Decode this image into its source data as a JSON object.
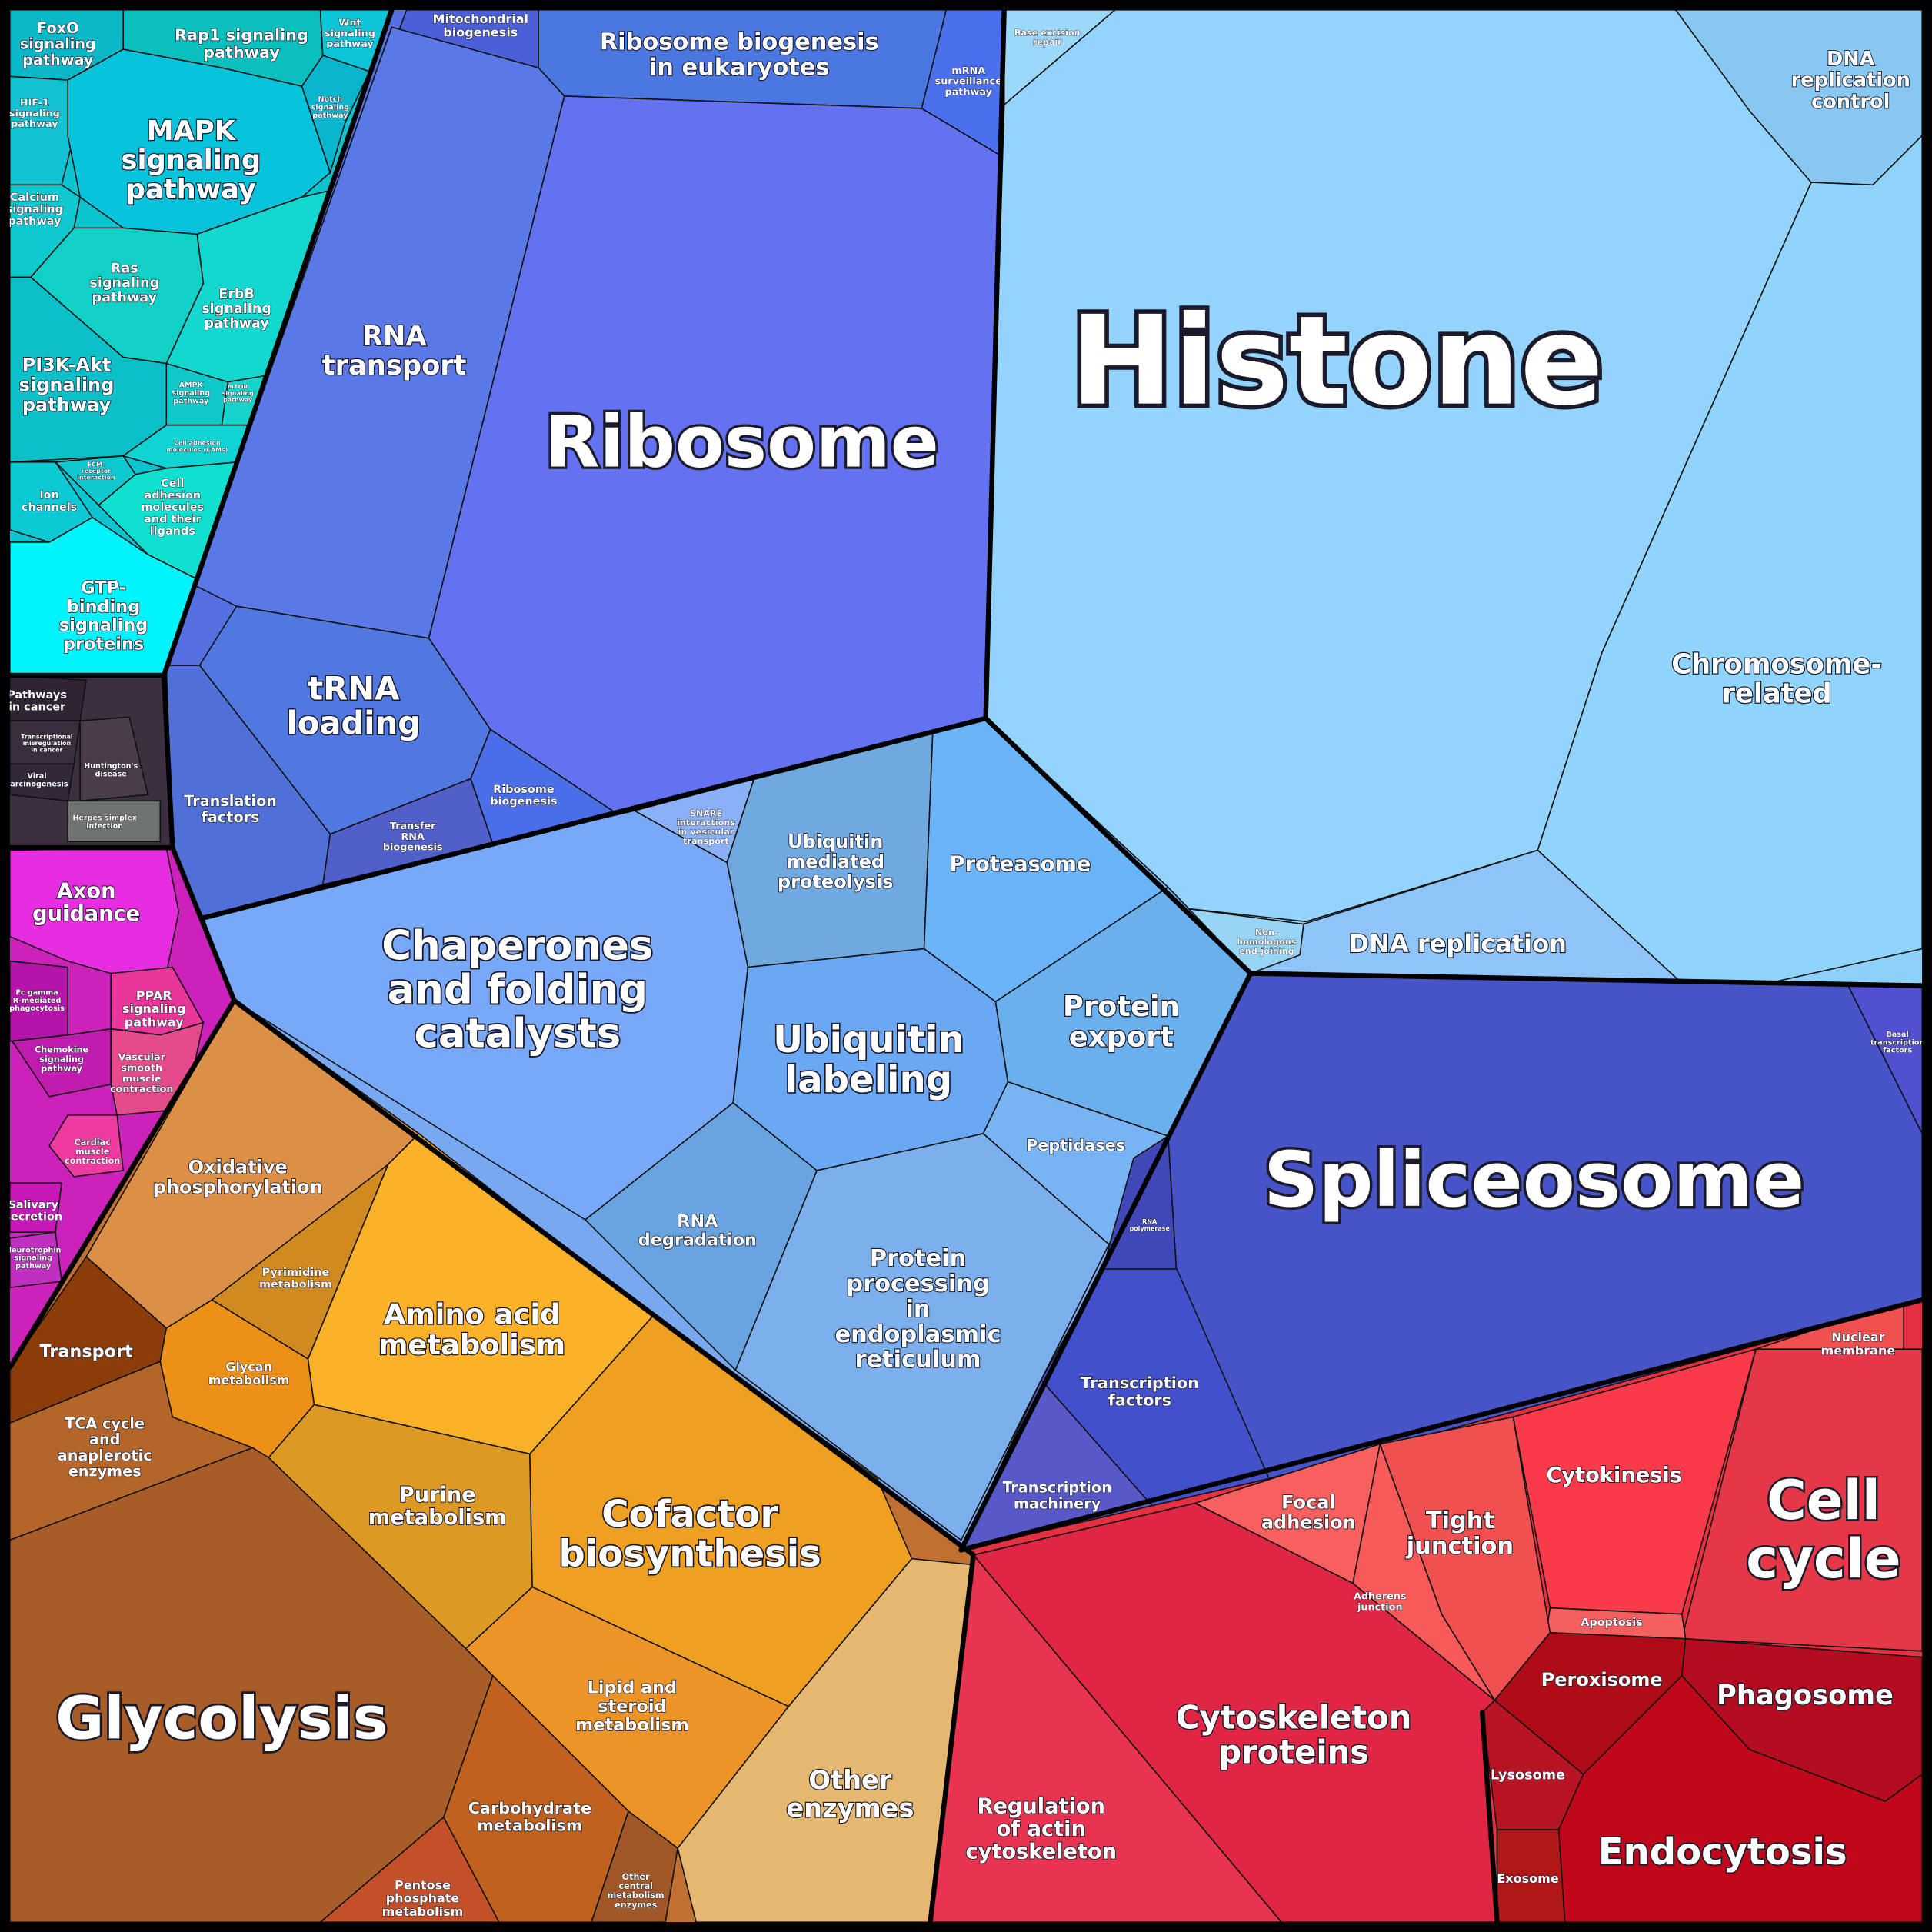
{
  "cells": [
    {
      "lines": [
        "FoxO",
        "signaling",
        "pathway"
      ]
    },
    {
      "lines": [
        "Rap1 signaling",
        "pathway"
      ]
    },
    {
      "lines": [
        "Wnt",
        "signaling",
        "pathway"
      ]
    },
    {
      "lines": [
        "HIF-1",
        "signaling",
        "pathway"
      ]
    },
    {
      "lines": [
        "MAPK",
        "signaling",
        "pathway"
      ]
    },
    {
      "lines": [
        "Notch",
        "signaling",
        "pathway"
      ]
    },
    {
      "lines": [
        "Calcium",
        "signaling",
        "pathway"
      ]
    },
    {
      "lines": [
        "Ras",
        "signaling",
        "pathway"
      ]
    },
    {
      "lines": [
        "ErbB",
        "signaling",
        "pathway"
      ]
    },
    {
      "lines": [
        "PI3K-Akt",
        "signaling",
        "pathway"
      ]
    },
    {
      "lines": [
        "AMPK",
        "signaling",
        "pathway"
      ]
    },
    {
      "lines": [
        "mTOR",
        "signaling",
        "pathway"
      ]
    },
    {
      "lines": [
        "Cell adhesion",
        "molecules (CAMs)"
      ]
    },
    {
      "lines": [
        "ECM-",
        "receptor",
        "interaction"
      ]
    },
    {
      "lines": [
        "Ion",
        "channels"
      ]
    },
    {
      "lines": [
        "Cell",
        "adhesion",
        "molecules",
        "and their",
        "ligands"
      ]
    },
    {
      "lines": [
        "GTP-",
        "binding",
        "signaling",
        "proteins"
      ]
    },
    {
      "lines": [
        "Pathways",
        "in cancer"
      ]
    },
    {
      "lines": [
        "Transcriptional",
        "misregulation",
        "in cancer"
      ]
    },
    {
      "lines": [
        "Viral",
        "carcinogenesis"
      ]
    },
    {
      "lines": [
        "Huntington's",
        "disease"
      ]
    },
    {
      "lines": [
        "Herpes simplex",
        "infection"
      ]
    },
    {
      "lines": [
        "Axon",
        "guidance"
      ]
    },
    {
      "lines": [
        "Fc gamma",
        "R-mediated",
        "phagocytosis"
      ]
    },
    {
      "lines": [
        "PPAR",
        "signaling",
        "pathway"
      ]
    },
    {
      "lines": [
        "Chemokine",
        "signaling",
        "pathway"
      ]
    },
    {
      "lines": [
        "Vascular",
        "smooth",
        "muscle",
        "contraction"
      ]
    },
    {
      "lines": [
        "Cardiac",
        "muscle",
        "contraction"
      ]
    },
    {
      "lines": [
        "Salivary",
        "secretion"
      ]
    },
    {
      "lines": [
        "Neurotrophin",
        "signaling",
        "pathway"
      ]
    },
    {
      "lines": [
        "Mitochondrial",
        "biogenesis"
      ]
    },
    {
      "lines": [
        "Ribosome biogenesis",
        "in eukaryotes"
      ]
    },
    {
      "lines": [
        "mRNA",
        "surveillance",
        "pathway"
      ]
    },
    {
      "lines": [
        "RNA",
        "transport"
      ]
    },
    {
      "lines": [
        "Ribosome"
      ]
    },
    {
      "lines": [
        "tRNA",
        "loading"
      ]
    },
    {
      "lines": [
        "Ribosome",
        "biogenesis"
      ]
    },
    {
      "lines": [
        "Transfer",
        "RNA",
        "biogenesis"
      ]
    },
    {
      "lines": [
        "Translation",
        "factors"
      ]
    },
    {
      "lines": [
        "Base excision",
        "repair"
      ]
    },
    {
      "lines": [
        "Histone"
      ]
    },
    {
      "lines": [
        "DNA",
        "replication",
        "control"
      ]
    },
    {
      "lines": [
        "Chromosome-",
        "related"
      ]
    },
    {
      "lines": [
        "DNA replication"
      ]
    },
    {
      "lines": [
        "Non-",
        "homologous",
        "end-joining"
      ]
    },
    {
      "lines": [
        "SNARE",
        "interactions",
        "in vesicular",
        "transport"
      ]
    },
    {
      "lines": [
        "Ubiquitin",
        "mediated",
        "proteolysis"
      ]
    },
    {
      "lines": [
        "Proteasome"
      ]
    },
    {
      "lines": [
        "Chaperones",
        "and folding",
        "catalysts"
      ]
    },
    {
      "lines": [
        "Ubiquitin",
        "labeling"
      ]
    },
    {
      "lines": [
        "Protein",
        "export"
      ]
    },
    {
      "lines": [
        "Peptidases"
      ]
    },
    {
      "lines": [
        "RNA",
        "degradation"
      ]
    },
    {
      "lines": [
        "Protein",
        "processing",
        "in",
        "endoplasmic",
        "reticulum"
      ]
    },
    {
      "lines": [
        "Spliceosome"
      ]
    },
    {
      "lines": [
        "Basal",
        "transcription",
        "factors"
      ]
    },
    {
      "lines": [
        "RNA",
        "polymerase"
      ]
    },
    {
      "lines": [
        "Transcription",
        "factors"
      ]
    },
    {
      "lines": [
        "Transcription",
        "machinery"
      ]
    },
    {
      "lines": [
        "Nuclear",
        "membrane"
      ]
    },
    {
      "lines": [
        "Cell",
        "cycle"
      ]
    },
    {
      "lines": [
        "Cytokinesis"
      ]
    },
    {
      "lines": [
        "Apoptosis"
      ]
    },
    {
      "lines": [
        "Tight",
        "junction"
      ]
    },
    {
      "lines": [
        "Focal",
        "adhesion"
      ]
    },
    {
      "lines": [
        "Adherens",
        "junction"
      ]
    },
    {
      "lines": [
        "Cytoskeleton",
        "proteins"
      ]
    },
    {
      "lines": [
        "Regulation",
        "of actin",
        "cytoskeleton"
      ]
    },
    {
      "lines": [
        "Peroxisome"
      ]
    },
    {
      "lines": [
        "Phagosome"
      ]
    },
    {
      "lines": [
        "Lysosome"
      ]
    },
    {
      "lines": [
        "Endocytosis"
      ]
    },
    {
      "lines": [
        "Exosome"
      ]
    },
    {
      "lines": [
        "Oxidative",
        "phosphorylation"
      ]
    },
    {
      "lines": [
        "Transport"
      ]
    },
    {
      "lines": [
        "Pyrimidine",
        "metabolism"
      ]
    },
    {
      "lines": [
        "Glycan",
        "metabolism"
      ]
    },
    {
      "lines": [
        "Amino acid",
        "metabolism"
      ]
    },
    {
      "lines": [
        "Purine",
        "metabolism"
      ]
    },
    {
      "lines": [
        "Cofactor",
        "biosynthesis"
      ]
    },
    {
      "lines": [
        "Lipid and",
        "steroid",
        "metabolism"
      ]
    },
    {
      "lines": [
        "Other",
        "enzymes"
      ]
    },
    {
      "lines": [
        "TCA cycle",
        "and",
        "anaplerotic",
        "enzymes"
      ]
    },
    {
      "lines": [
        "Glycolysis"
      ]
    },
    {
      "lines": [
        "Carbohydrate",
        "metabolism"
      ]
    },
    {
      "lines": [
        "Pentose",
        "phosphate",
        "metabolism"
      ]
    },
    {
      "lines": [
        "Other",
        "central",
        "metabolism",
        "enzymes"
      ]
    }
  ]
}
